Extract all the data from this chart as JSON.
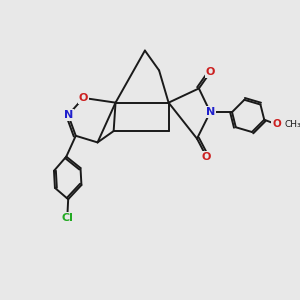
{
  "bg_color": "#e8e8e8",
  "bond_color": "#1a1a1a",
  "bond_width": 1.4,
  "atom_colors": {
    "N": "#2020cc",
    "O": "#cc2020",
    "Cl": "#22aa22"
  },
  "fs": 8.0
}
